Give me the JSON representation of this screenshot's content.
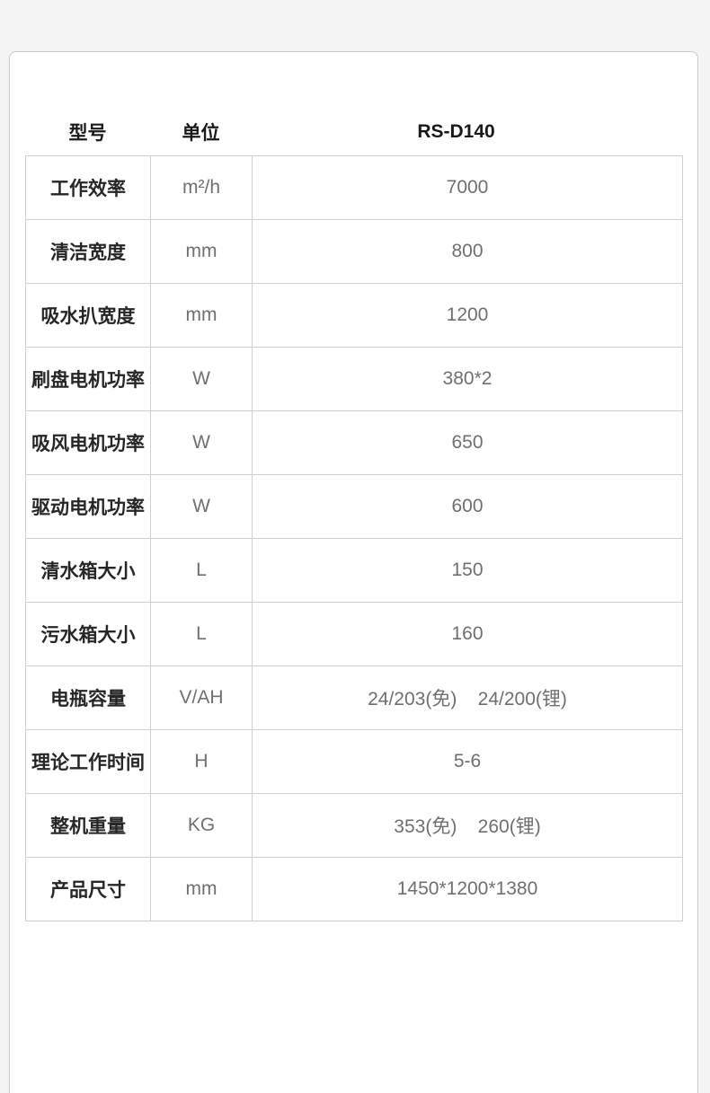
{
  "style": {
    "page_background": "#f4f4f5",
    "card_background": "#ffffff",
    "card_border": "#c9c9c9",
    "table_border": "#cfcfcf",
    "header_text_color": "#1a1a1a",
    "label_text_color": "#262626",
    "value_text_color": "#6f6f6f"
  },
  "table": {
    "header": {
      "model": "型号",
      "unit": "单位",
      "product_model": "RS-D140"
    },
    "rows": [
      {
        "label": "工作效率",
        "unit": "m²/h",
        "value": "7000"
      },
      {
        "label": "清洁宽度",
        "unit": "mm",
        "value": "800"
      },
      {
        "label": "吸水扒宽度",
        "unit": "mm",
        "value": "1200"
      },
      {
        "label": "刷盘电机功率",
        "unit": "W",
        "value": "380*2"
      },
      {
        "label": "吸风电机功率",
        "unit": "W",
        "value": "650"
      },
      {
        "label": "驱动电机功率",
        "unit": "W",
        "value": "600"
      },
      {
        "label": "清水箱大小",
        "unit": "L",
        "value": "150"
      },
      {
        "label": "污水箱大小",
        "unit": "L",
        "value": "160"
      },
      {
        "label": "电瓶容量",
        "unit": "V/AH",
        "value": "24/203(免)    24/200(锂)"
      },
      {
        "label": "理论工作时间",
        "unit": "H",
        "value": "5-6"
      },
      {
        "label": "整机重量",
        "unit": "KG",
        "value": "353(免)    260(锂)"
      },
      {
        "label": "产品尺寸",
        "unit": "mm",
        "value": "1450*1200*1380"
      }
    ]
  }
}
